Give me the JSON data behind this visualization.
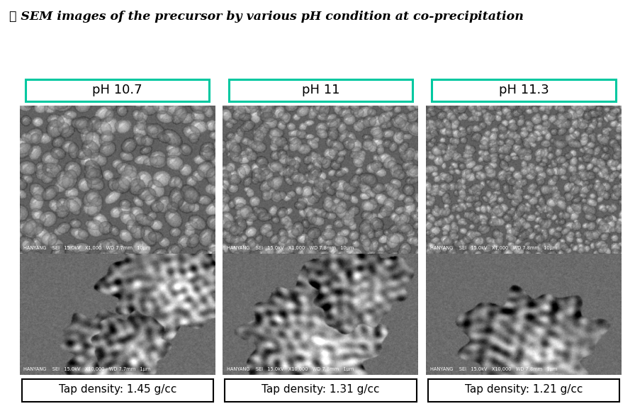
{
  "title": "❖ SEM images of the precursor by various pH condition at co-precipitation",
  "title_color": "#000000",
  "title_fontsize": 12.5,
  "background_color": "#ffffff",
  "ph_labels": [
    "pH 10.7",
    "pH 11",
    "pH 11.3"
  ],
  "ph_box_color": "#00c8a0",
  "tap_densities": [
    "Tap density: 1.45 g/cc",
    "Tap density: 1.31 g/cc",
    "Tap density: 1.21 g/cc"
  ],
  "tap_fontsize": 11,
  "ph_fontsize": 13,
  "sem_info_top": [
    "HANYANG    SEI   15.0kV   X1,000   WD 7.7mm   10μm",
    "HANYANG    SEI   15.0kV   X1,000   WD 7.8mm   10μm",
    "HANYANG    SEI   15.0kV   X1,000   WD 7.8mm   10μm"
  ],
  "sem_info_bot": [
    "HANYANG    SEI   15.0kV   X10,000   WD 7.7mm   1μm",
    "HANYANG    SEI   15.0kV   X10,000   WD 7.8mm   1μm",
    "HANYANG    SEI   15.0kV   X10,000   WD 7.8mm   1μm"
  ],
  "particle_radii": [
    12,
    9,
    7
  ],
  "particle_counts": [
    350,
    500,
    700
  ]
}
